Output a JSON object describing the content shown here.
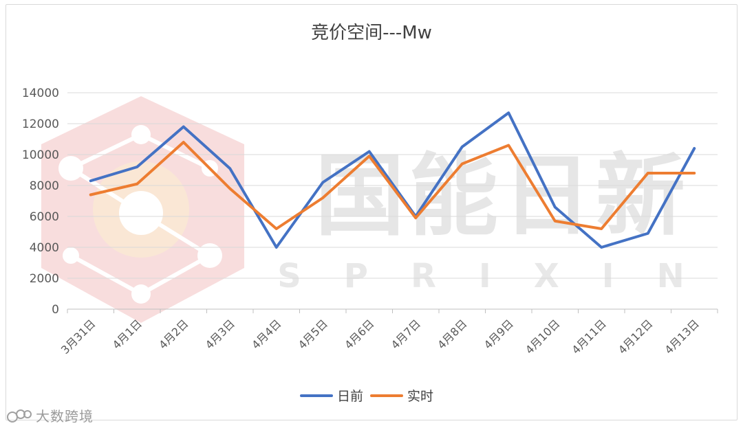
{
  "chart_data": {
    "type": "line",
    "title": "竞价空间---Mw",
    "categories": [
      "3月31日",
      "4月1日",
      "4月2日",
      "4月3日",
      "4月4日",
      "4月5日",
      "4月6日",
      "4月7日",
      "4月8日",
      "4月9日",
      "4月10日",
      "4月11日",
      "4月12日",
      "4月13日"
    ],
    "series": [
      {
        "name": "日前",
        "color": "#4472c4",
        "values": [
          8300,
          9200,
          11800,
          9100,
          4000,
          8200,
          10200,
          6000,
          10500,
          12700,
          6600,
          4000,
          4900,
          10400
        ]
      },
      {
        "name": "实时",
        "color": "#ed7d31",
        "values": [
          7400,
          8100,
          10800,
          7800,
          5200,
          7200,
          9900,
          5900,
          9400,
          10600,
          5700,
          5200,
          8800,
          8800
        ]
      }
    ],
    "ylim": [
      0,
      14000
    ],
    "yticks": [
      0,
      2000,
      4000,
      6000,
      8000,
      10000,
      12000,
      14000
    ],
    "grid": true,
    "legend": "bottom-center"
  },
  "watermark": {
    "main_text": "国能日新",
    "sub_text": "SPRIXIN",
    "corner_text": "大数跨境"
  }
}
